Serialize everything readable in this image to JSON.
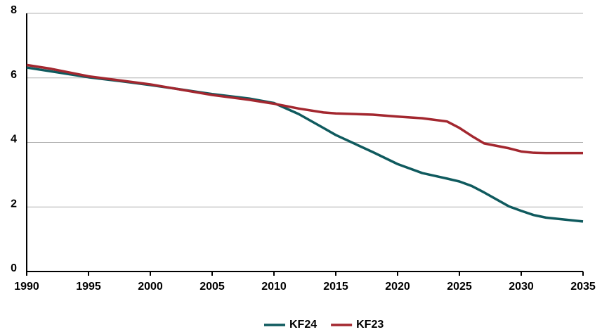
{
  "chart_data": {
    "type": "line",
    "x": [
      1990,
      1992,
      1995,
      1998,
      2000,
      2005,
      2008,
      2010,
      2012,
      2014,
      2015,
      2018,
      2020,
      2022,
      2024,
      2025,
      2026,
      2027,
      2029,
      2030,
      2031,
      2032,
      2035
    ],
    "series": [
      {
        "name": "KF24",
        "color": "#0f5a5e",
        "values": [
          6.32,
          6.2,
          6.02,
          5.88,
          5.78,
          5.5,
          5.36,
          5.22,
          4.88,
          4.45,
          4.23,
          3.7,
          3.33,
          3.05,
          2.88,
          2.79,
          2.65,
          2.45,
          2.02,
          1.88,
          1.75,
          1.67,
          1.55
        ]
      },
      {
        "name": "KF23",
        "color": "#a3272f",
        "values": [
          6.4,
          6.28,
          6.05,
          5.9,
          5.8,
          5.47,
          5.32,
          5.2,
          5.05,
          4.93,
          4.9,
          4.86,
          4.8,
          4.75,
          4.65,
          4.45,
          4.2,
          3.97,
          3.82,
          3.72,
          3.68,
          3.67,
          3.67
        ]
      }
    ],
    "xlim": [
      1990,
      2035
    ],
    "xticks": [
      1990,
      1995,
      2000,
      2005,
      2010,
      2015,
      2020,
      2025,
      2030,
      2035
    ],
    "ylim": [
      0,
      8
    ],
    "yticks": [
      0,
      2,
      4,
      6,
      8
    ],
    "grid": true,
    "legend": "bottom"
  }
}
